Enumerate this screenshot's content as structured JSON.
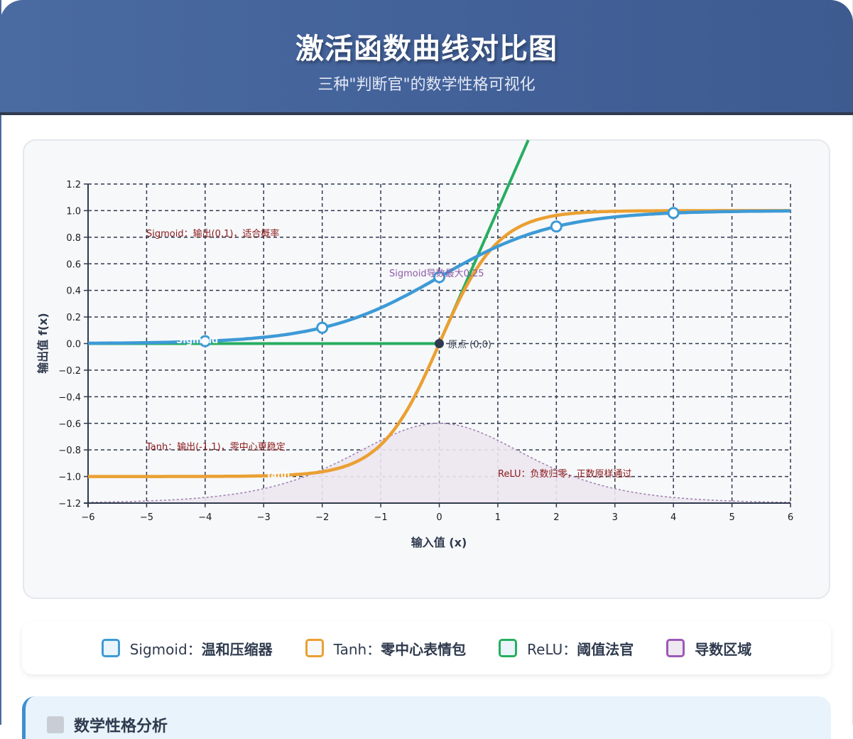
{
  "header": {
    "title": "激活函数曲线对比图",
    "subtitle": "三种\"判断官\"的数学性格可视化"
  },
  "colors": {
    "sigmoid": "#3d9ad6",
    "tanh": "#eaa032",
    "relu": "#27ae60",
    "derivative": "#9b59b6",
    "annotation": "#8b1a1a",
    "header_bg": "#4566a0"
  },
  "chart_data": {
    "type": "line",
    "title": "",
    "xlabel": "输入值 (x)",
    "ylabel": "输出值 f(x)",
    "xlim": [
      -6,
      6
    ],
    "ylim": [
      -1.2,
      1.2
    ],
    "grid": true,
    "x_ticks": [
      "−6",
      "−5",
      "−4",
      "−3",
      "−2",
      "−1",
      "0",
      "1",
      "2",
      "3",
      "4",
      "5",
      "6"
    ],
    "y_ticks": [
      "1.2",
      "1.0",
      "0.8",
      "0.6",
      "0.4",
      "0.2",
      "0.0",
      "−0.2",
      "−0.4",
      "−0.6",
      "−0.8",
      "−1.0",
      "−1.2"
    ],
    "series": [
      {
        "name": "Sigmoid",
        "function": "1/(1+exp(-x))",
        "x": [
          -6,
          -4,
          -2,
          0,
          2,
          4,
          6
        ],
        "values": [
          0.0025,
          0.018,
          0.119,
          0.5,
          0.881,
          0.982,
          0.9975
        ],
        "markers_at": [
          -4,
          -2,
          0,
          2,
          4
        ],
        "inline_label": "Sigmoid"
      },
      {
        "name": "Tanh",
        "function": "tanh(x)",
        "x": [
          -6,
          -2,
          -1,
          0,
          1,
          2,
          6
        ],
        "values": [
          -1.0,
          -0.964,
          -0.762,
          0.0,
          0.762,
          0.964,
          1.0
        ],
        "inline_label": "Tanh"
      },
      {
        "name": "ReLU",
        "function": "max(0,x)",
        "x": [
          -6,
          0,
          1.52
        ],
        "values": [
          0,
          0,
          1.52
        ]
      },
      {
        "name": "导数区域",
        "function": "-1.2 + 2.4*sigmoid'(x)",
        "x": [
          -6,
          -3,
          -2,
          -1,
          0,
          1,
          2,
          3,
          6
        ],
        "values": [
          -1.194,
          -1.092,
          -0.951,
          -0.728,
          -0.6,
          -0.728,
          -0.951,
          -1.092,
          -1.194
        ]
      }
    ],
    "annotations": [
      {
        "text": "Sigmoid：输出(0,1)，适合概率",
        "x": -5,
        "y": 0.82
      },
      {
        "text": "Sigmoid导数最大0.25",
        "x": -0.85,
        "y": 0.53
      },
      {
        "text": "原点 (0,0)",
        "x": 0.12,
        "y": 0.0
      },
      {
        "text": "Tanh：输出(-1,1)，零中心更稳定",
        "x": -5,
        "y": -0.78
      },
      {
        "text": "ReLU：负数归零，正数原样通过",
        "x": 1.0,
        "y": -0.98
      }
    ]
  },
  "legend": [
    {
      "label_prefix": "Sigmoid：",
      "label_bold": "温和压缩器"
    },
    {
      "label_prefix": "Tanh：",
      "label_bold": "零中心表情包"
    },
    {
      "label_prefix": "ReLU：",
      "label_bold": "阈值法官"
    },
    {
      "label_prefix": "",
      "label_bold": "导数区域"
    }
  ],
  "analysis": {
    "title": "数学性格分析",
    "icon": "memo-icon"
  }
}
